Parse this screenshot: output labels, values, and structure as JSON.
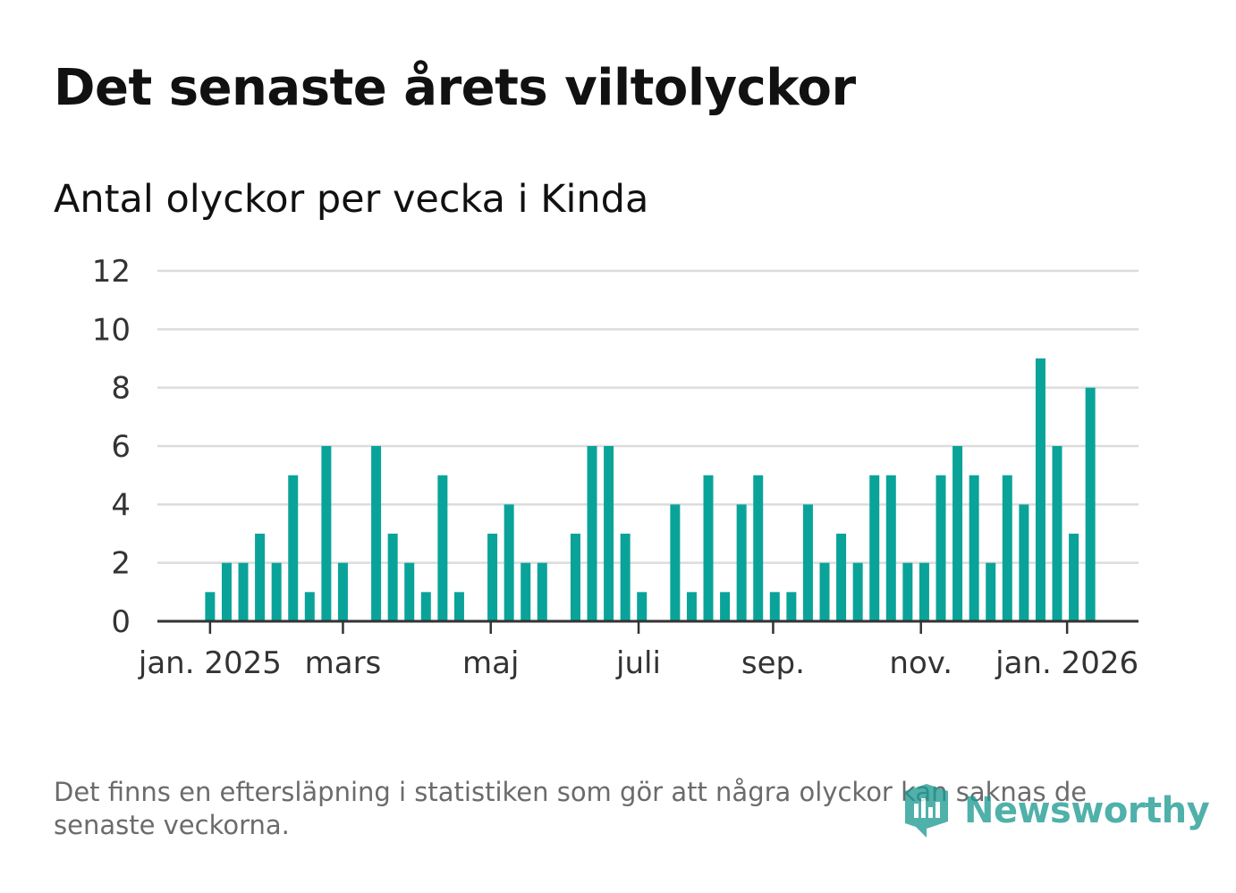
{
  "title": "Det senaste årets viltolyckor",
  "subtitle": "Antal olyckor per vecka i Kinda",
  "footnote": "Det finns en eftersläpning i statistiken som gör att några olyckor kan saknas de senaste veckorna.",
  "brand": {
    "name": "Newsworthy",
    "color": "#1f9a93"
  },
  "colors": {
    "bar": "#0aa39a",
    "grid": "#dcdcdc",
    "axis": "#333333"
  },
  "chart_data": {
    "type": "bar",
    "title": "Antal olyckor per vecka i Kinda",
    "xlabel": "",
    "ylabel": "",
    "ylim": [
      0,
      12
    ],
    "yticks": [
      0,
      2,
      4,
      6,
      8,
      10,
      12
    ],
    "grid": true,
    "x_axis": {
      "type": "week",
      "domain_start_week_index": -3.17,
      "domain_end_week_index": 55.9,
      "tick_labels": [
        {
          "label": "jan. 2025",
          "week_index": 0
        },
        {
          "label": "mars",
          "week_index": 8
        },
        {
          "label": "maj",
          "week_index": 16.9
        },
        {
          "label": "juli",
          "week_index": 25.8
        },
        {
          "label": "sep.",
          "week_index": 33.9
        },
        {
          "label": "nov.",
          "week_index": 42.8
        },
        {
          "label": "jan. 2026",
          "week_index": 51.6
        }
      ]
    },
    "series": [
      {
        "name": "Antal olyckor",
        "week_index": [
          0,
          1,
          2,
          3,
          4,
          5,
          6,
          7,
          8,
          9,
          10,
          11,
          12,
          13,
          14,
          15,
          16,
          17,
          18,
          19,
          20,
          21,
          22,
          23,
          24,
          25,
          26,
          27,
          28,
          29,
          30,
          31,
          32,
          33,
          34,
          35,
          36,
          37,
          38,
          39,
          40,
          41,
          42,
          43,
          44,
          45,
          46,
          47,
          48,
          49,
          50,
          51,
          52,
          53
        ],
        "values": [
          1,
          2,
          2,
          3,
          2,
          5,
          1,
          6,
          2,
          0,
          6,
          3,
          2,
          1,
          5,
          1,
          0,
          3,
          4,
          2,
          2,
          0,
          3,
          6,
          6,
          3,
          1,
          0,
          4,
          1,
          5,
          1,
          4,
          5,
          1,
          1,
          4,
          2,
          3,
          2,
          5,
          5,
          2,
          2,
          5,
          6,
          5,
          2,
          5,
          4,
          9,
          6,
          3,
          8
        ]
      }
    ]
  }
}
